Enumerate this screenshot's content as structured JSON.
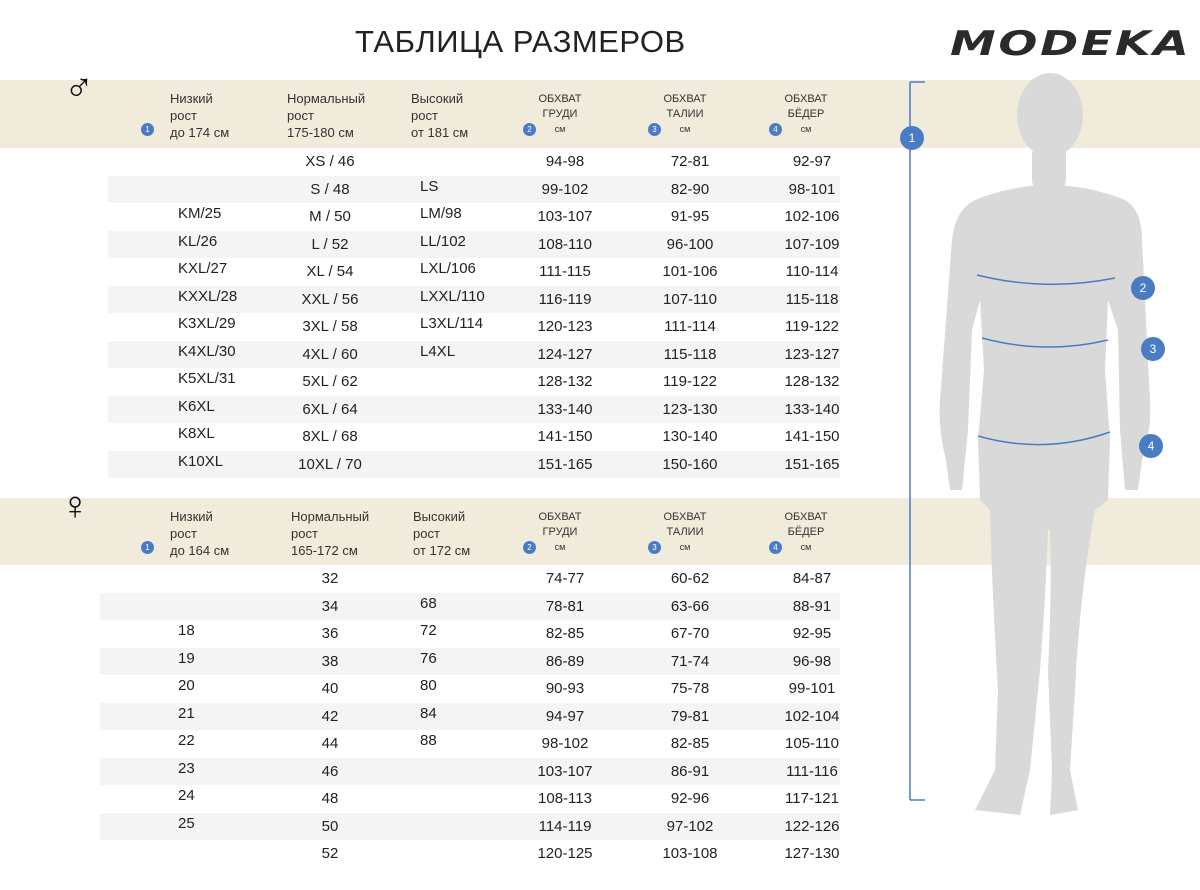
{
  "title": "ТАБЛИЦА РАЗМЕРОВ",
  "logo": "MODEKA",
  "accent_color": "#4a7cc4",
  "band_color": "#f1ebdb",
  "men": {
    "symbol": "♂",
    "headers": {
      "low": [
        "Низкий",
        "рост",
        "до 174 см"
      ],
      "normal": [
        "Нормальный",
        "рост",
        "175-180 см"
      ],
      "high": [
        "Высокий",
        "рост",
        "от 181 см"
      ],
      "chest": [
        "ОБХВАТ",
        "ГРУДИ",
        "см"
      ],
      "waist": [
        "ОБХВАТ",
        "ТАЛИИ",
        "см"
      ],
      "hips": [
        "ОБХВАТ",
        "БЁДЕР",
        "см"
      ]
    },
    "rows": [
      [
        "",
        "XS / 46",
        "",
        "94-98",
        "72-81",
        "92-97"
      ],
      [
        "",
        "S / 48",
        "LS",
        "99-102",
        "82-90",
        "98-101"
      ],
      [
        "KM/25",
        "M / 50",
        "LM/98",
        "103-107",
        "91-95",
        "102-106"
      ],
      [
        "KL/26",
        "L / 52",
        "LL/102",
        "108-110",
        "96-100",
        "107-109"
      ],
      [
        "KXL/27",
        "XL / 54",
        "LXL/106",
        "111-115",
        "101-106",
        "110-114"
      ],
      [
        "KXXL/28",
        "XXL / 56",
        "LXXL/110",
        "116-119",
        "107-110",
        "115-118"
      ],
      [
        "K3XL/29",
        "3XL / 58",
        "L3XL/114",
        "120-123",
        "111-114",
        "119-122"
      ],
      [
        "K4XL/30",
        "4XL / 60",
        "L4XL",
        "124-127",
        "115-118",
        "123-127"
      ],
      [
        "K5XL/31",
        "5XL / 62",
        "",
        "128-132",
        "119-122",
        "128-132"
      ],
      [
        "K6XL",
        "6XL / 64",
        "",
        "133-140",
        "123-130",
        "133-140"
      ],
      [
        "K8XL",
        "8XL / 68",
        "",
        "141-150",
        "130-140",
        "141-150"
      ],
      [
        "K10XL",
        "10XL / 70",
        "",
        "151-165",
        "150-160",
        "151-165"
      ]
    ]
  },
  "women": {
    "symbol": "♀",
    "headers": {
      "low": [
        "Низкий",
        "рост",
        "до 164 см"
      ],
      "normal": [
        "Нормальный",
        "рост",
        "165-172 см"
      ],
      "high": [
        "Высокий",
        "рост",
        "от 172 см"
      ],
      "chest": [
        "ОБХВАТ",
        "ГРУДИ",
        "см"
      ],
      "waist": [
        "ОБХВАТ",
        "ТАЛИИ",
        "см"
      ],
      "hips": [
        "ОБХВАТ",
        "БЁДЕР",
        "см"
      ]
    },
    "rows": [
      [
        "",
        "32",
        "",
        "74-77",
        "60-62",
        "84-87"
      ],
      [
        "",
        "34",
        "68",
        "78-81",
        "63-66",
        "88-91"
      ],
      [
        "18",
        "36",
        "72",
        "82-85",
        "67-70",
        "92-95"
      ],
      [
        "19",
        "38",
        "76",
        "86-89",
        "71-74",
        "96-98"
      ],
      [
        "20",
        "40",
        "80",
        "90-93",
        "75-78",
        "99-101"
      ],
      [
        "21",
        "42",
        "84",
        "94-97",
        "79-81",
        "102-104"
      ],
      [
        "22",
        "44",
        "88",
        "98-102",
        "82-85",
        "105-110"
      ],
      [
        "23",
        "46",
        "",
        "103-107",
        "86-91",
        "111-116"
      ],
      [
        "24",
        "48",
        "",
        "108-113",
        "92-96",
        "117-121"
      ],
      [
        "25",
        "50",
        "",
        "114-119",
        "97-102",
        "122-126"
      ],
      [
        "",
        "52",
        "",
        "120-125",
        "103-108",
        "127-130"
      ]
    ]
  },
  "markers": [
    "1",
    "2",
    "3",
    "4"
  ]
}
